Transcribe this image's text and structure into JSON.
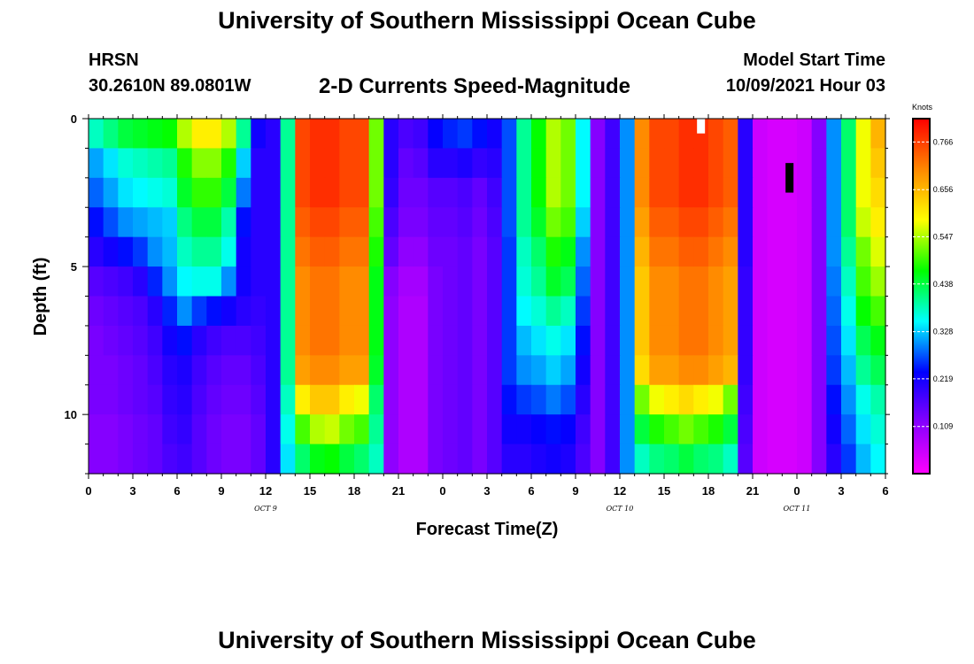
{
  "header": {
    "title": "University of Southern Mississippi Ocean Cube",
    "station": "HRSN",
    "coordinates": "30.2610N  89.0801W",
    "subtitle": "2-D Currents Speed-Magnitude",
    "model_start_label": "Model Start Time",
    "model_start_value": "10/09/2021 Hour 03"
  },
  "footer": {
    "title": "University of Southern Mississippi Ocean Cube"
  },
  "colors": {
    "scale": [
      "#ff00ff",
      "#8800ff",
      "#0000ff",
      "#00ffff",
      "#00ff00",
      "#ffff00",
      "#ff8800",
      "#ff0000"
    ]
  },
  "chart_data": {
    "type": "heatmap",
    "xlabel": "Forecast Time(Z)",
    "ylabel": "Depth (ft)",
    "x_range": [
      0,
      54
    ],
    "y_range": [
      0,
      12
    ],
    "x_tick_labels": [
      "0",
      "3",
      "6",
      "9",
      "12",
      "15",
      "18",
      "21",
      "0",
      "3",
      "6",
      "9",
      "12",
      "15",
      "18",
      "21",
      "0",
      "3",
      "6"
    ],
    "y_tick_labels": [
      "0",
      "5",
      "10"
    ],
    "day_labels": [
      "OCT 9",
      "OCT 10",
      "OCT 11"
    ],
    "colorbar": {
      "unit": "Knots",
      "range": [
        0.0,
        0.82
      ],
      "tick_labels": [
        "0.766",
        "0.656",
        "0.547",
        "0.438",
        "0.328",
        "0.219",
        "0.109"
      ]
    },
    "depth_levels_ft": [
      0,
      1,
      2,
      3,
      4,
      5,
      6,
      7,
      8,
      9,
      10,
      11
    ],
    "time_hours": [
      0,
      1,
      2,
      3,
      4,
      5,
      6,
      7,
      8,
      9,
      10,
      11,
      12,
      13,
      14,
      15,
      16,
      17,
      18,
      19,
      20,
      21,
      22,
      23,
      24,
      25,
      26,
      27,
      28,
      29,
      30,
      31,
      32,
      33,
      34,
      35,
      36,
      37,
      38,
      39,
      40,
      41,
      42,
      43,
      44,
      45,
      46,
      47,
      48,
      49,
      50,
      51,
      52,
      53
    ],
    "speed_knots": [
      [
        0.38,
        0.41,
        0.44,
        0.45,
        0.46,
        0.47,
        0.55,
        0.6,
        0.6,
        0.55,
        0.4,
        0.22,
        0.2,
        0.4,
        0.76,
        0.78,
        0.78,
        0.76,
        0.76,
        0.52,
        0.2,
        0.17,
        0.18,
        0.23,
        0.25,
        0.26,
        0.24,
        0.22,
        0.27,
        0.4,
        0.47,
        0.55,
        0.52,
        0.35,
        0.12,
        0.18,
        0.3,
        0.7,
        0.76,
        0.76,
        0.78,
        0.78,
        0.76,
        0.74,
        0.2,
        0.05,
        0.04,
        0.04,
        0.05,
        0.12,
        0.3,
        0.42,
        0.58,
        0.66
      ],
      [
        0.31,
        0.34,
        0.37,
        0.38,
        0.39,
        0.4,
        0.48,
        0.53,
        0.53,
        0.48,
        0.33,
        0.2,
        0.2,
        0.4,
        0.76,
        0.78,
        0.78,
        0.76,
        0.76,
        0.52,
        0.2,
        0.15,
        0.16,
        0.2,
        0.2,
        0.21,
        0.19,
        0.2,
        0.27,
        0.4,
        0.47,
        0.55,
        0.52,
        0.35,
        0.12,
        0.18,
        0.3,
        0.7,
        0.76,
        0.76,
        0.78,
        0.78,
        0.76,
        0.74,
        0.2,
        0.05,
        0.04,
        0.04,
        0.05,
        0.12,
        0.3,
        0.42,
        0.58,
        0.64
      ],
      [
        0.28,
        0.31,
        0.34,
        0.35,
        0.36,
        0.37,
        0.45,
        0.49,
        0.49,
        0.44,
        0.29,
        0.2,
        0.2,
        0.4,
        0.76,
        0.78,
        0.78,
        0.76,
        0.76,
        0.52,
        0.19,
        0.14,
        0.14,
        0.16,
        0.16,
        0.17,
        0.15,
        0.18,
        0.27,
        0.4,
        0.47,
        0.55,
        0.52,
        0.35,
        0.12,
        0.18,
        0.3,
        0.7,
        0.76,
        0.76,
        0.78,
        0.78,
        0.76,
        0.74,
        0.2,
        0.05,
        0.04,
        0.04,
        0.05,
        0.12,
        0.3,
        0.42,
        0.58,
        0.62
      ],
      [
        0.24,
        0.27,
        0.3,
        0.31,
        0.32,
        0.33,
        0.41,
        0.44,
        0.44,
        0.39,
        0.24,
        0.2,
        0.2,
        0.4,
        0.74,
        0.76,
        0.76,
        0.74,
        0.74,
        0.5,
        0.17,
        0.13,
        0.13,
        0.15,
        0.15,
        0.16,
        0.14,
        0.17,
        0.27,
        0.4,
        0.45,
        0.52,
        0.5,
        0.33,
        0.12,
        0.18,
        0.3,
        0.68,
        0.74,
        0.74,
        0.76,
        0.76,
        0.74,
        0.72,
        0.2,
        0.05,
        0.04,
        0.04,
        0.05,
        0.12,
        0.3,
        0.42,
        0.56,
        0.6
      ],
      [
        0.2,
        0.22,
        0.24,
        0.26,
        0.3,
        0.32,
        0.38,
        0.4,
        0.4,
        0.36,
        0.22,
        0.2,
        0.2,
        0.4,
        0.72,
        0.74,
        0.74,
        0.72,
        0.72,
        0.48,
        0.15,
        0.11,
        0.11,
        0.14,
        0.14,
        0.15,
        0.13,
        0.16,
        0.26,
        0.38,
        0.42,
        0.48,
        0.46,
        0.3,
        0.12,
        0.18,
        0.3,
        0.66,
        0.72,
        0.72,
        0.74,
        0.74,
        0.72,
        0.7,
        0.2,
        0.05,
        0.04,
        0.04,
        0.05,
        0.12,
        0.3,
        0.4,
        0.52,
        0.57
      ],
      [
        0.16,
        0.17,
        0.18,
        0.2,
        0.25,
        0.3,
        0.35,
        0.36,
        0.36,
        0.3,
        0.22,
        0.2,
        0.2,
        0.4,
        0.7,
        0.72,
        0.72,
        0.7,
        0.7,
        0.46,
        0.12,
        0.09,
        0.09,
        0.13,
        0.14,
        0.15,
        0.13,
        0.16,
        0.26,
        0.37,
        0.4,
        0.45,
        0.43,
        0.28,
        0.12,
        0.18,
        0.3,
        0.64,
        0.7,
        0.7,
        0.72,
        0.72,
        0.7,
        0.68,
        0.19,
        0.05,
        0.04,
        0.04,
        0.05,
        0.12,
        0.29,
        0.38,
        0.5,
        0.54
      ],
      [
        0.14,
        0.15,
        0.16,
        0.17,
        0.2,
        0.25,
        0.3,
        0.26,
        0.24,
        0.22,
        0.2,
        0.19,
        0.2,
        0.4,
        0.7,
        0.72,
        0.72,
        0.7,
        0.7,
        0.46,
        0.11,
        0.08,
        0.08,
        0.13,
        0.14,
        0.15,
        0.13,
        0.16,
        0.26,
        0.35,
        0.37,
        0.4,
        0.38,
        0.26,
        0.12,
        0.18,
        0.3,
        0.64,
        0.7,
        0.7,
        0.72,
        0.72,
        0.7,
        0.68,
        0.19,
        0.05,
        0.04,
        0.04,
        0.05,
        0.12,
        0.28,
        0.36,
        0.47,
        0.5
      ],
      [
        0.13,
        0.14,
        0.15,
        0.16,
        0.18,
        0.22,
        0.24,
        0.2,
        0.18,
        0.17,
        0.17,
        0.18,
        0.2,
        0.4,
        0.7,
        0.72,
        0.72,
        0.7,
        0.7,
        0.46,
        0.11,
        0.08,
        0.08,
        0.13,
        0.14,
        0.15,
        0.13,
        0.16,
        0.26,
        0.32,
        0.34,
        0.36,
        0.34,
        0.24,
        0.12,
        0.18,
        0.3,
        0.64,
        0.7,
        0.7,
        0.72,
        0.72,
        0.7,
        0.68,
        0.19,
        0.05,
        0.04,
        0.04,
        0.05,
        0.12,
        0.27,
        0.34,
        0.43,
        0.46
      ],
      [
        0.13,
        0.13,
        0.14,
        0.15,
        0.17,
        0.2,
        0.21,
        0.18,
        0.16,
        0.15,
        0.15,
        0.17,
        0.2,
        0.4,
        0.68,
        0.7,
        0.7,
        0.68,
        0.68,
        0.45,
        0.11,
        0.08,
        0.08,
        0.13,
        0.14,
        0.15,
        0.13,
        0.16,
        0.26,
        0.3,
        0.31,
        0.33,
        0.31,
        0.22,
        0.12,
        0.18,
        0.3,
        0.62,
        0.68,
        0.68,
        0.7,
        0.7,
        0.68,
        0.66,
        0.19,
        0.05,
        0.04,
        0.04,
        0.05,
        0.12,
        0.26,
        0.32,
        0.4,
        0.43
      ],
      [
        0.13,
        0.13,
        0.14,
        0.15,
        0.16,
        0.19,
        0.2,
        0.17,
        0.15,
        0.14,
        0.14,
        0.16,
        0.2,
        0.38,
        0.6,
        0.64,
        0.64,
        0.6,
        0.58,
        0.42,
        0.11,
        0.08,
        0.08,
        0.13,
        0.14,
        0.15,
        0.13,
        0.16,
        0.24,
        0.26,
        0.27,
        0.29,
        0.27,
        0.2,
        0.12,
        0.18,
        0.3,
        0.52,
        0.58,
        0.6,
        0.62,
        0.6,
        0.58,
        0.52,
        0.18,
        0.05,
        0.04,
        0.04,
        0.05,
        0.12,
        0.24,
        0.3,
        0.36,
        0.39
      ],
      [
        0.12,
        0.12,
        0.13,
        0.14,
        0.15,
        0.18,
        0.19,
        0.16,
        0.14,
        0.13,
        0.13,
        0.15,
        0.2,
        0.36,
        0.5,
        0.55,
        0.56,
        0.52,
        0.5,
        0.4,
        0.11,
        0.08,
        0.08,
        0.13,
        0.14,
        0.15,
        0.13,
        0.16,
        0.22,
        0.22,
        0.23,
        0.24,
        0.23,
        0.18,
        0.12,
        0.18,
        0.3,
        0.44,
        0.48,
        0.5,
        0.52,
        0.5,
        0.48,
        0.44,
        0.17,
        0.05,
        0.04,
        0.04,
        0.05,
        0.12,
        0.22,
        0.28,
        0.34,
        0.37
      ],
      [
        0.12,
        0.12,
        0.13,
        0.14,
        0.15,
        0.17,
        0.18,
        0.16,
        0.14,
        0.13,
        0.13,
        0.15,
        0.2,
        0.34,
        0.42,
        0.46,
        0.47,
        0.44,
        0.42,
        0.38,
        0.11,
        0.08,
        0.08,
        0.13,
        0.14,
        0.15,
        0.13,
        0.16,
        0.2,
        0.2,
        0.21,
        0.22,
        0.21,
        0.17,
        0.12,
        0.18,
        0.3,
        0.38,
        0.41,
        0.42,
        0.44,
        0.42,
        0.41,
        0.38,
        0.16,
        0.05,
        0.04,
        0.04,
        0.05,
        0.12,
        0.2,
        0.26,
        0.32,
        0.35
      ]
    ],
    "annotations": [
      {
        "type": "marker",
        "color": "white",
        "time_hour": 41.5,
        "depth_ft": [
          0,
          0.5
        ]
      },
      {
        "type": "marker",
        "color": "black",
        "time_hour": 47.5,
        "depth_ft": [
          1.5,
          2.5
        ]
      }
    ]
  }
}
